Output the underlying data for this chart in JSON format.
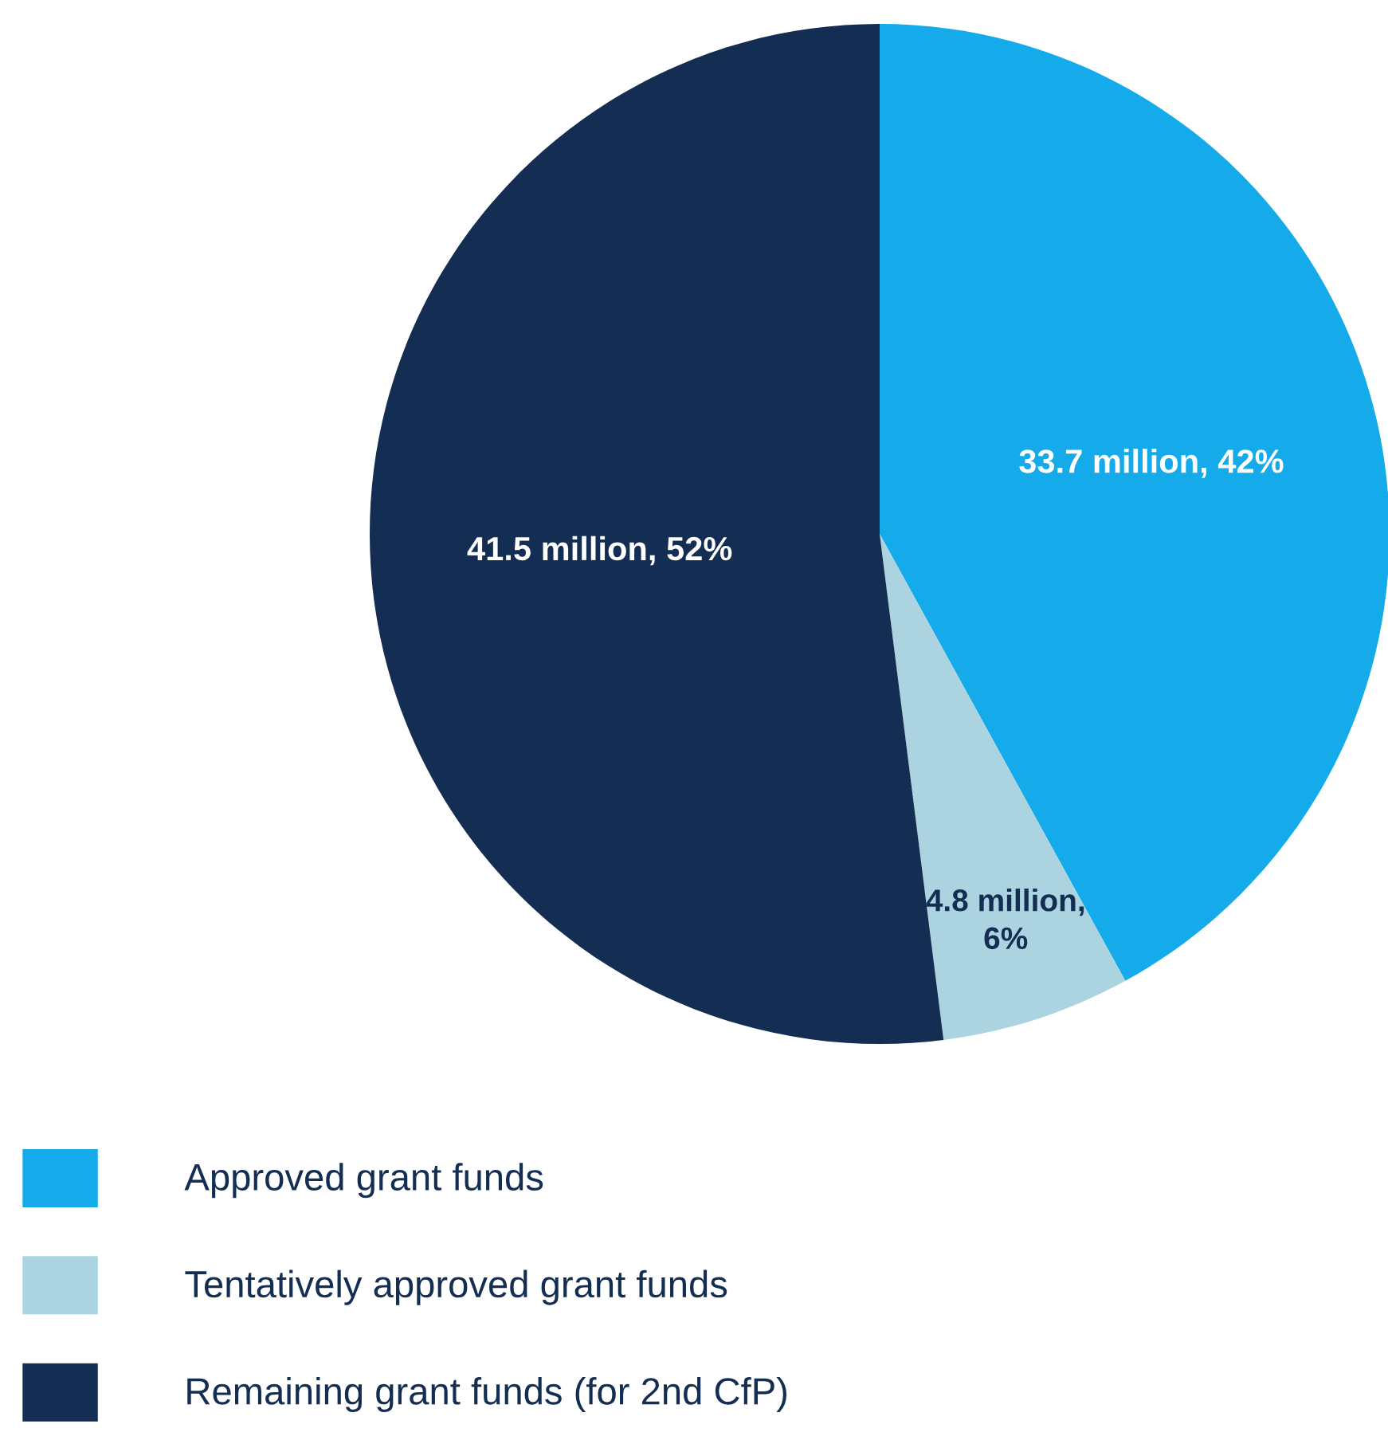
{
  "chart_data": {
    "type": "pie",
    "categories": [
      "Approved grant funds",
      "Tentatively approved grant funds",
      "Remaining grant funds (for 2nd CfP)"
    ],
    "values": [
      42,
      6,
      52
    ],
    "value_labels": [
      "33.7 million, 42%",
      "4.8 million,\n6%",
      "41.5 million, 52%"
    ],
    "colors": [
      "#15abea",
      "#acd4e0",
      "#132e52"
    ],
    "legend": "bottom left"
  }
}
